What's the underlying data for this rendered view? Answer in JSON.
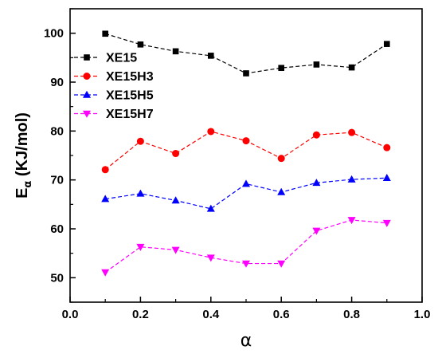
{
  "chart_data": {
    "type": "line",
    "xlabel": "α",
    "ylabel": {
      "main": "E",
      "sub": "α",
      "unit": " (KJ/mol)"
    },
    "xlim": [
      0.0,
      1.0
    ],
    "ylim": [
      45,
      105
    ],
    "xticks": [
      "0.0",
      "0.2",
      "0.4",
      "0.6",
      "0.8",
      "1.0"
    ],
    "yticks": [
      "50",
      "60",
      "70",
      "80",
      "90",
      "100"
    ],
    "legend_position": "top-left",
    "x": [
      0.1,
      0.2,
      0.3,
      0.4,
      0.5,
      0.6,
      0.7,
      0.8,
      0.9
    ],
    "series": [
      {
        "name": "XE15",
        "color": "#000000",
        "marker": "square",
        "values": [
          99.9,
          97.7,
          96.3,
          95.4,
          91.8,
          92.9,
          93.6,
          93.0,
          97.8
        ]
      },
      {
        "name": "XE15H3",
        "color": "#ff0000",
        "marker": "circle",
        "values": [
          72.1,
          77.9,
          75.4,
          79.9,
          78.0,
          74.4,
          79.2,
          79.7,
          76.6
        ]
      },
      {
        "name": "XE15H5",
        "color": "#0000ff",
        "marker": "triangle-up",
        "values": [
          66.1,
          67.2,
          65.8,
          64.1,
          69.2,
          67.5,
          69.4,
          70.1,
          70.4
        ]
      },
      {
        "name": "XE15H7",
        "color": "#ff00ff",
        "marker": "triangle-down",
        "values": [
          51.1,
          56.3,
          55.7,
          54.1,
          52.9,
          52.9,
          59.6,
          61.8,
          61.2
        ]
      }
    ]
  }
}
